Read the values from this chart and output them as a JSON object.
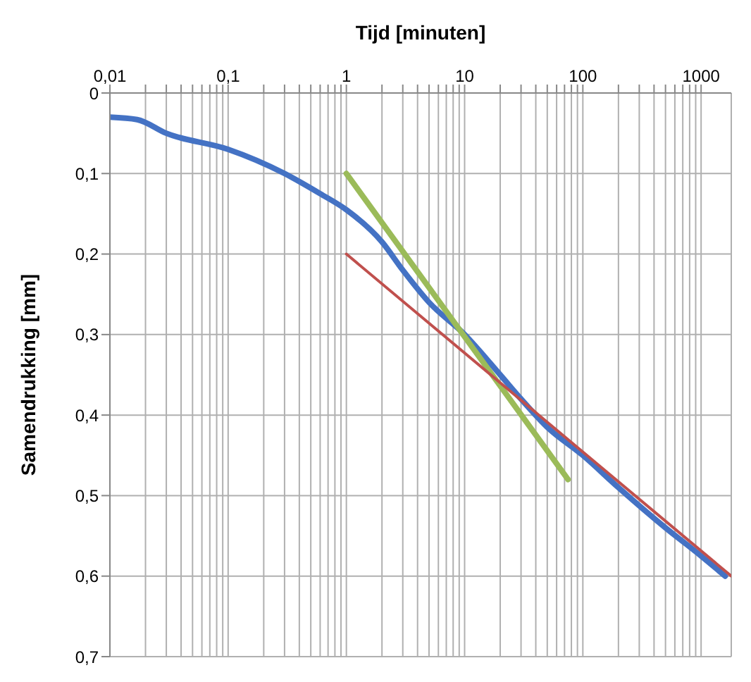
{
  "chart_data": {
    "type": "line",
    "xlabel": "Tijd [minuten]",
    "ylabel": "Samendrukking [mm]",
    "log": "x",
    "grid": true,
    "marker": "none",
    "line_style": "solid",
    "xlim": [
      0.01,
      1800
    ],
    "xticks": [
      {
        "value": 0.01,
        "label": "0,01"
      },
      {
        "value": 0.02,
        "label": null
      },
      {
        "value": 0.03,
        "label": null
      },
      {
        "value": 0.04,
        "label": null
      },
      {
        "value": 0.05,
        "label": null
      },
      {
        "value": 0.06,
        "label": null
      },
      {
        "value": 0.07,
        "label": null
      },
      {
        "value": 0.08,
        "label": null
      },
      {
        "value": 0.09,
        "label": null
      },
      {
        "value": 0.1,
        "label": "0,1"
      },
      {
        "value": 0.2,
        "label": null
      },
      {
        "value": 0.3,
        "label": null
      },
      {
        "value": 0.4,
        "label": null
      },
      {
        "value": 0.5,
        "label": null
      },
      {
        "value": 0.6,
        "label": null
      },
      {
        "value": 0.7,
        "label": null
      },
      {
        "value": 0.8,
        "label": null
      },
      {
        "value": 0.9,
        "label": null
      },
      1,
      {
        "value": 2,
        "label": null
      },
      {
        "value": 3,
        "label": null
      },
      {
        "value": 4,
        "label": null
      },
      {
        "value": 5,
        "label": null
      },
      {
        "value": 6,
        "label": null
      },
      {
        "value": 7,
        "label": null
      },
      {
        "value": 8,
        "label": null
      },
      {
        "value": 9,
        "label": null
      },
      10,
      {
        "value": 20,
        "label": null
      },
      {
        "value": 30,
        "label": null
      },
      {
        "value": 40,
        "label": null
      },
      {
        "value": 50,
        "label": null
      },
      {
        "value": 60,
        "label": null
      },
      {
        "value": 70,
        "label": null
      },
      {
        "value": 80,
        "label": null
      },
      {
        "value": 90,
        "label": null
      },
      100,
      {
        "value": 200,
        "label": null
      },
      {
        "value": 300,
        "label": null
      },
      {
        "value": 400,
        "label": null
      },
      {
        "value": 500,
        "label": null
      },
      {
        "value": 600,
        "label": null
      },
      {
        "value": 700,
        "label": null
      },
      {
        "value": 800,
        "label": null
      },
      {
        "value": 900,
        "label": null
      },
      1000
    ],
    "ylim": [
      0.7,
      0
    ],
    "yticks": [
      0,
      {
        "value": 0.1,
        "label": "0,1"
      },
      {
        "value": 0.2,
        "label": "0,2"
      },
      {
        "value": 0.3,
        "label": "0,3"
      },
      {
        "value": 0.4,
        "label": "0,4"
      },
      {
        "value": 0.5,
        "label": "0,5"
      },
      {
        "value": 0.6,
        "label": "0,6"
      },
      {
        "value": 0.7,
        "label": "0,7"
      }
    ],
    "series": [
      {
        "color": "#4472c4",
        "x": [
          0.01,
          0.017,
          0.03,
          0.1,
          0.3,
          0.6,
          1,
          2,
          3,
          5,
          10,
          20,
          30,
          50,
          100,
          200,
          500,
          1000,
          1600
        ],
        "values": [
          0.03,
          0.033,
          0.05,
          0.07,
          0.1,
          0.125,
          0.145,
          0.185,
          0.22,
          0.26,
          0.3,
          0.35,
          0.38,
          0.415,
          0.45,
          0.49,
          0.54,
          0.575,
          0.6
        ]
      },
      {
        "color": "#9bbb59",
        "x": [
          1,
          75
        ],
        "values": [
          0.1,
          0.48
        ]
      },
      {
        "color": "#c0504d",
        "x": [
          1,
          1800
        ],
        "values": [
          0.2,
          0.6
        ]
      }
    ]
  }
}
